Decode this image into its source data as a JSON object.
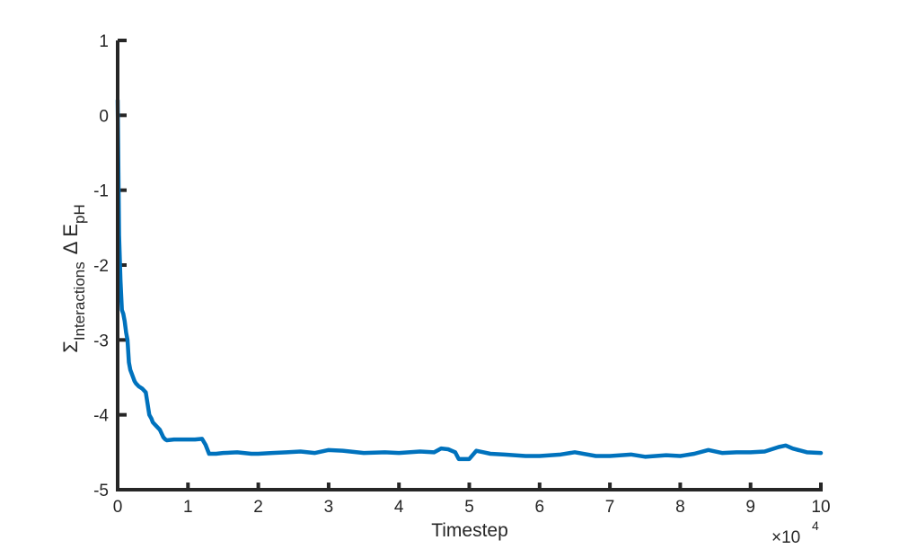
{
  "chart_data": {
    "type": "line",
    "title": "",
    "xlabel": "Timestep",
    "x_multiplier": {
      "base": "×10",
      "exponent": "4"
    },
    "ylabel": {
      "sigma": "Σ",
      "sigma_sub": "Interactions",
      "delta": "Δ E",
      "delta_sub": "pH"
    },
    "xlim": [
      0,
      10
    ],
    "ylim": [
      -5,
      1
    ],
    "xticks": [
      "0",
      "1",
      "2",
      "3",
      "4",
      "5",
      "6",
      "7",
      "8",
      "9",
      "10"
    ],
    "yticks": [
      "1",
      "0",
      "-1",
      "-2",
      "-3",
      "-4",
      "-5"
    ],
    "grid": false,
    "line_color": "#0072BD",
    "axis_color": "#262626",
    "series": [
      {
        "x": [
          0,
          0.02,
          0.04,
          0.06,
          0.08,
          0.1,
          0.12,
          0.14,
          0.16,
          0.18,
          0.2,
          0.22,
          0.24,
          0.26,
          0.28,
          0.3,
          0.35,
          0.4,
          0.45,
          0.48,
          0.5,
          0.55,
          0.6,
          0.65,
          0.68,
          0.7,
          0.8,
          0.9,
          1.0,
          1.1,
          1.2,
          1.25,
          1.3,
          1.35,
          1.4,
          1.5,
          1.7,
          1.9,
          2.0,
          2.2,
          2.4,
          2.6,
          2.8,
          3.0,
          3.2,
          3.5,
          3.8,
          4.0,
          4.3,
          4.5,
          4.6,
          4.7,
          4.8,
          4.85,
          5.0,
          5.1,
          5.2,
          5.3,
          5.5,
          5.8,
          6.0,
          6.3,
          6.5,
          6.8,
          7.0,
          7.3,
          7.5,
          7.8,
          8.0,
          8.2,
          8.4,
          8.6,
          8.8,
          9.0,
          9.2,
          9.4,
          9.5,
          9.6,
          9.8,
          10.0
        ],
        "y": [
          0.2,
          -1.6,
          -2.2,
          -2.6,
          -2.65,
          -2.75,
          -2.9,
          -3.0,
          -3.3,
          -3.4,
          -3.45,
          -3.5,
          -3.55,
          -3.58,
          -3.6,
          -3.62,
          -3.65,
          -3.7,
          -4.0,
          -4.05,
          -4.1,
          -4.15,
          -4.2,
          -4.3,
          -4.33,
          -4.34,
          -4.33,
          -4.33,
          -4.33,
          -4.33,
          -4.32,
          -4.4,
          -4.52,
          -4.52,
          -4.52,
          -4.51,
          -4.5,
          -4.52,
          -4.52,
          -4.51,
          -4.5,
          -4.49,
          -4.51,
          -4.47,
          -4.48,
          -4.51,
          -4.5,
          -4.51,
          -4.49,
          -4.5,
          -4.45,
          -4.46,
          -4.5,
          -4.59,
          -4.59,
          -4.48,
          -4.5,
          -4.52,
          -4.53,
          -4.55,
          -4.55,
          -4.53,
          -4.5,
          -4.55,
          -4.55,
          -4.53,
          -4.56,
          -4.54,
          -4.55,
          -4.52,
          -4.47,
          -4.51,
          -4.5,
          -4.5,
          -4.49,
          -4.43,
          -4.41,
          -4.45,
          -4.5,
          -4.51
        ]
      }
    ]
  }
}
